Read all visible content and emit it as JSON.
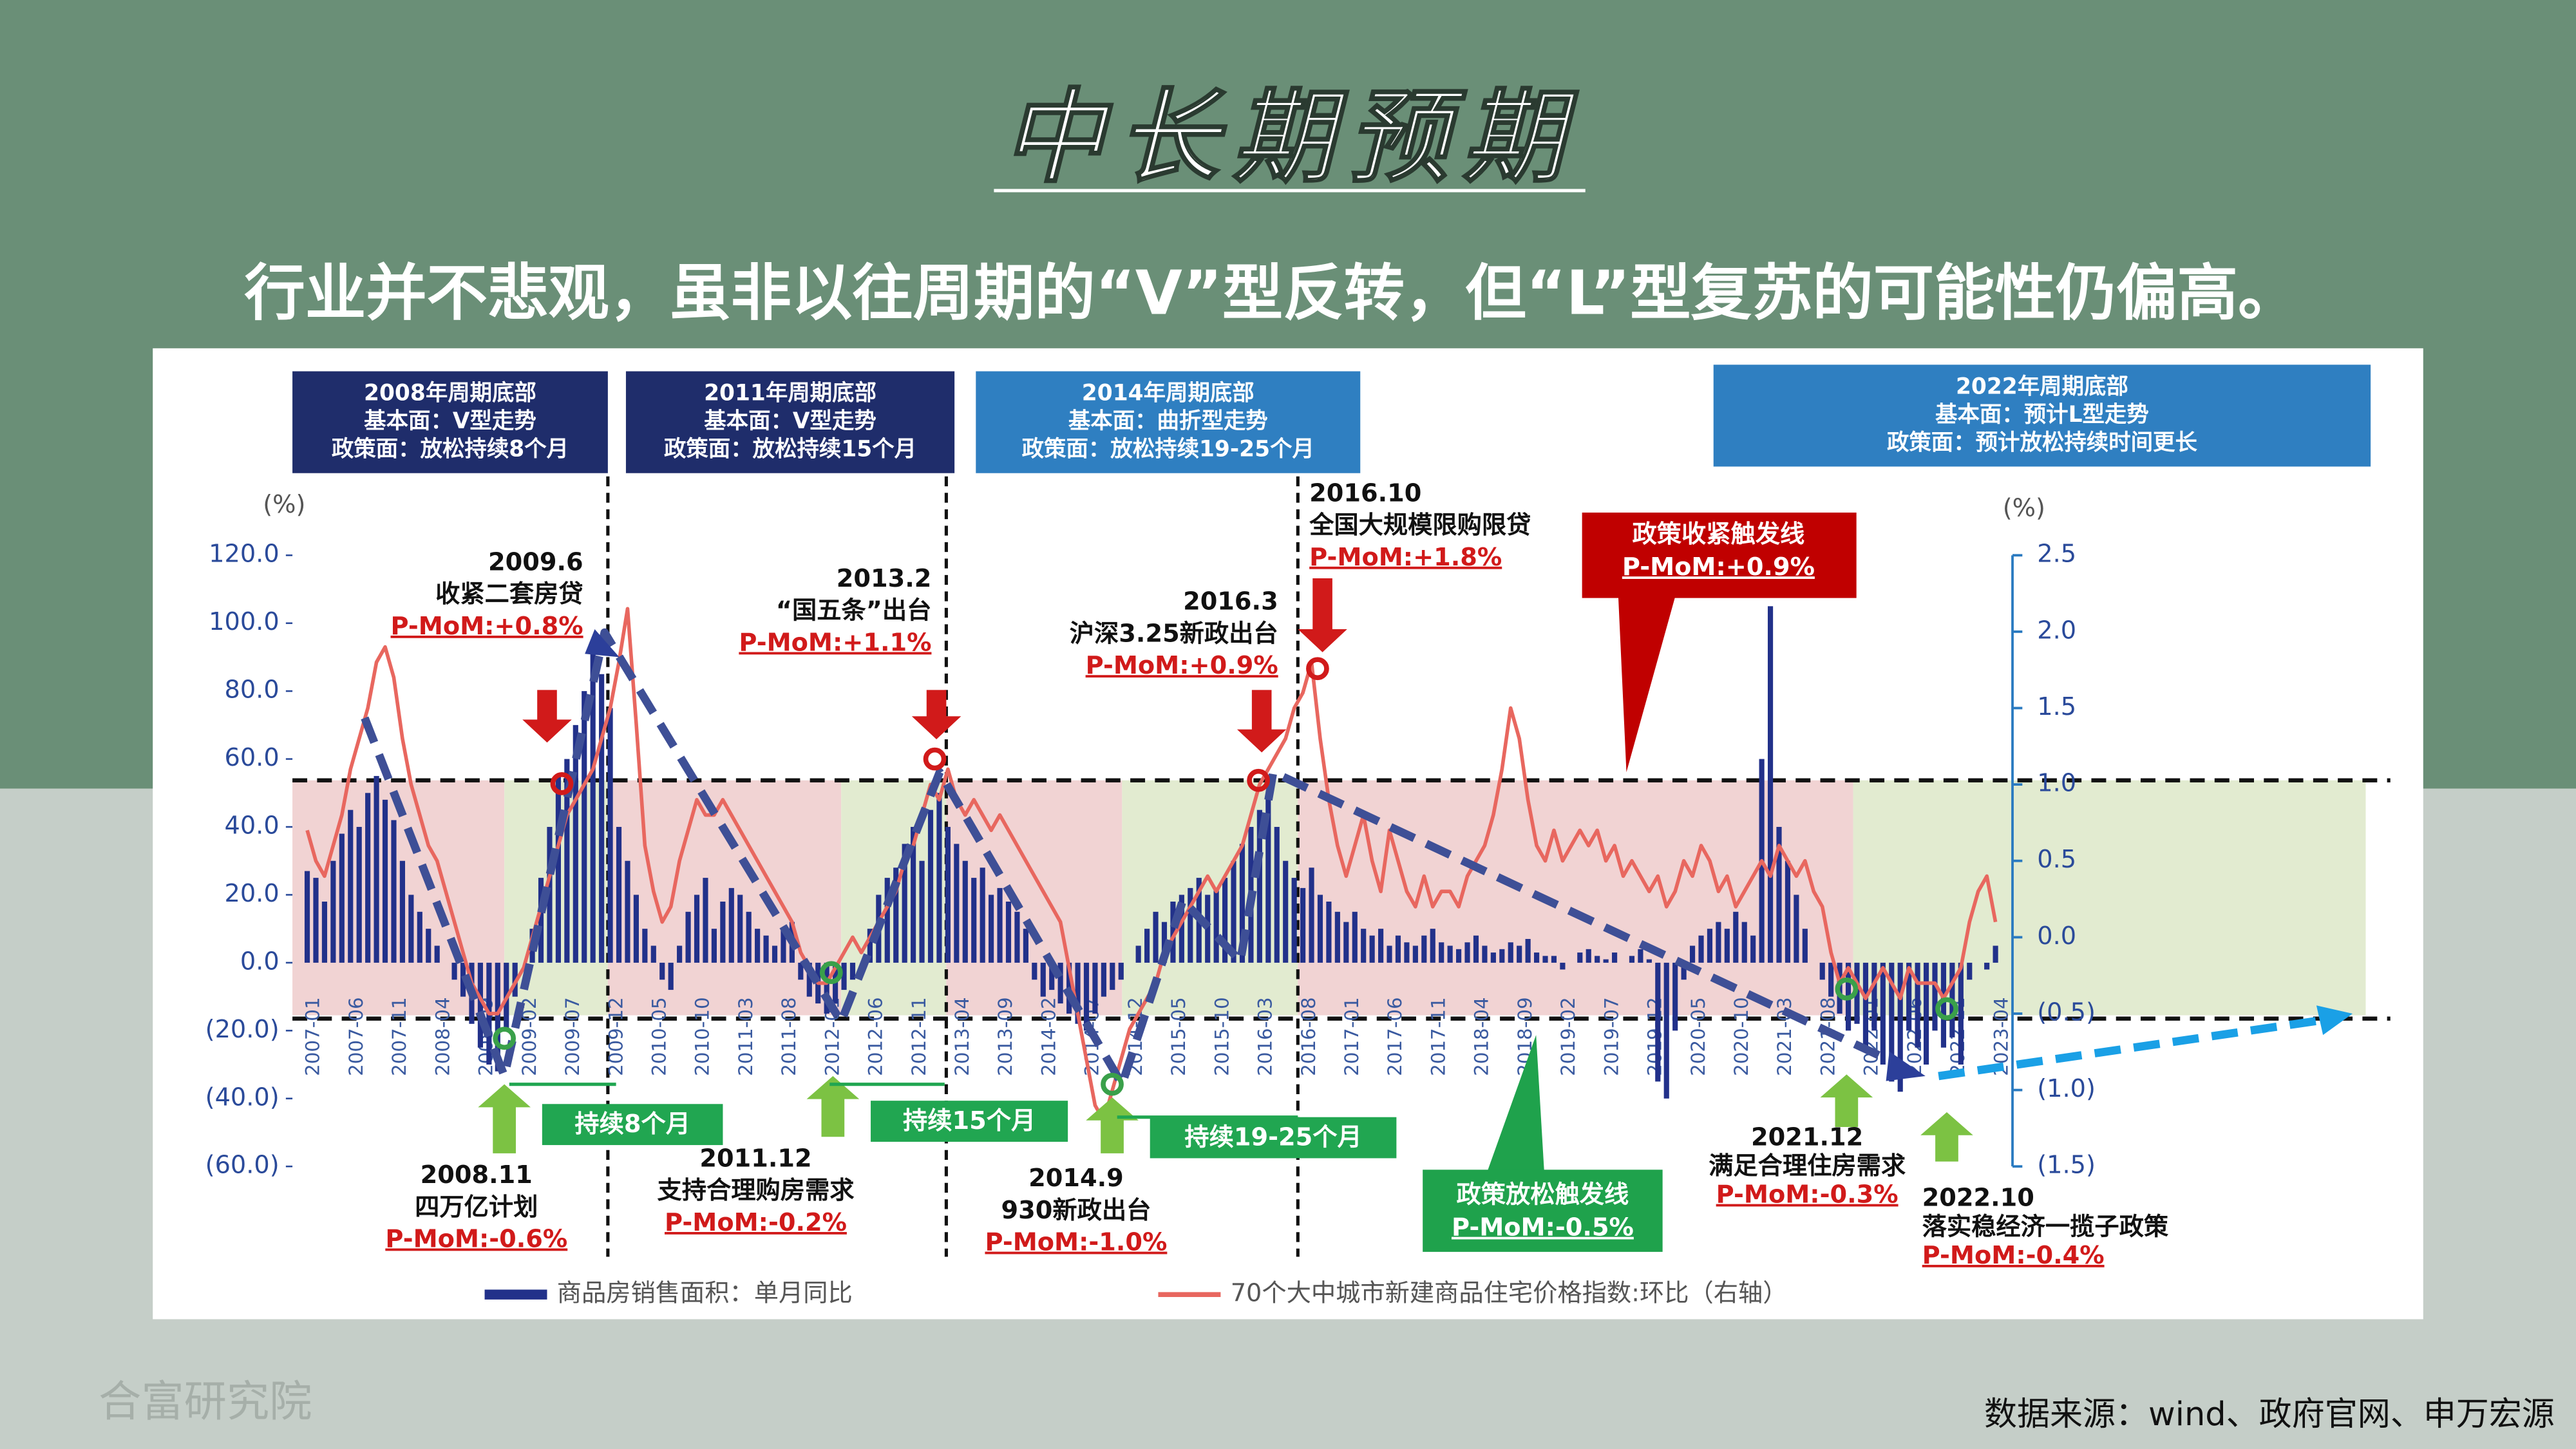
{
  "page": {
    "title": "中长期预期",
    "subtitle": "行业并不悲观，虽非以往周期的“V”型反转，但“L”型复苏的可能性仍偏高。",
    "source": "数据来源：wind、政府官网、申万宏源",
    "watermark": "合富研究院"
  },
  "chart_data": {
    "type": "bar",
    "y_unit": "(%)",
    "y2_unit": "(%)",
    "ylim": [
      -60,
      120
    ],
    "yticks": [
      {
        "value": 120,
        "label": "120.0"
      },
      {
        "value": 100,
        "label": "100.0"
      },
      {
        "value": 80,
        "label": "80.0"
      },
      {
        "value": 60,
        "label": "60.0"
      },
      {
        "value": 40,
        "label": "40.0"
      },
      {
        "value": 20,
        "label": "20.0"
      },
      {
        "value": 0,
        "label": "0.0"
      },
      {
        "value": -20,
        "label": "(20.0)"
      },
      {
        "value": -40,
        "label": "(40.0)"
      },
      {
        "value": -60,
        "label": "(60.0)"
      }
    ],
    "y2lim": [
      -1.5,
      2.5
    ],
    "y2ticks": [
      2.5,
      {
        "value": 2,
        "label": "2.0"
      },
      1.5,
      {
        "value": 1,
        "label": "1.0"
      },
      0.5,
      {
        "value": 0,
        "label": "0.0"
      },
      {
        "value": -0.5,
        "label": "(0.5)"
      },
      {
        "value": -1,
        "label": "(1.0)"
      },
      {
        "value": -1.5,
        "label": "(1.5)"
      }
    ],
    "categories": [
      "2007-01",
      null,
      null,
      null,
      null,
      "2007-06",
      null,
      null,
      null,
      null,
      "2007-11",
      null,
      null,
      null,
      null,
      "2008-04",
      null,
      null,
      null,
      null,
      "2008-09",
      null,
      null,
      null,
      null,
      "2009-02",
      null,
      null,
      null,
      null,
      "2009-07",
      null,
      null,
      null,
      null,
      "2009-12",
      null,
      null,
      null,
      null,
      "2010-05",
      null,
      null,
      null,
      null,
      "2010-10",
      null,
      null,
      null,
      null,
      "2011-03",
      null,
      null,
      null,
      null,
      "2011-08",
      null,
      null,
      null,
      null,
      "2012-01",
      null,
      null,
      null,
      null,
      "2012-06",
      null,
      null,
      null,
      null,
      "2012-11",
      null,
      null,
      null,
      null,
      "2013-04",
      null,
      null,
      null,
      null,
      "2013-09",
      null,
      null,
      null,
      null,
      "2014-02",
      null,
      null,
      null,
      null,
      "2014-07",
      null,
      null,
      null,
      null,
      "2014-12",
      null,
      null,
      null,
      null,
      "2015-05",
      null,
      null,
      null,
      null,
      "2015-10",
      null,
      null,
      null,
      null,
      "2016-03",
      null,
      null,
      null,
      null,
      "2016-08",
      null,
      null,
      null,
      null,
      "2017-01",
      null,
      null,
      null,
      null,
      "2017-06",
      null,
      null,
      null,
      null,
      "2017-11",
      null,
      null,
      null,
      null,
      "2018-04",
      null,
      null,
      null,
      null,
      "2018-09",
      null,
      null,
      null,
      null,
      "2019-02",
      null,
      null,
      null,
      null,
      "2019-07",
      null,
      null,
      null,
      null,
      "2019-12",
      null,
      null,
      null,
      null,
      "2020-05",
      null,
      null,
      null,
      null,
      "2020-10",
      null,
      null,
      null,
      null,
      "2021-03",
      null,
      null,
      null,
      null,
      "2021-08",
      null,
      null,
      null,
      null,
      "2022-01",
      null,
      null,
      null,
      null,
      "2022-06",
      null,
      null,
      null,
      null,
      "2022-11",
      null,
      null,
      null,
      null,
      "2023-04"
    ],
    "series": [
      {
        "name": "商品房销售面积：单月同比",
        "type": "bar",
        "color": "#22318a",
        "values": [
          27,
          25,
          18,
          30,
          38,
          45,
          40,
          50,
          55,
          48,
          42,
          30,
          20,
          15,
          10,
          5,
          0,
          -5,
          -10,
          -18,
          -25,
          -30,
          -32,
          -20,
          -10,
          0,
          10,
          25,
          40,
          55,
          60,
          70,
          80,
          95,
          85,
          75,
          40,
          30,
          20,
          10,
          5,
          -5,
          -8,
          5,
          15,
          20,
          25,
          10,
          18,
          22,
          20,
          15,
          10,
          8,
          5,
          10,
          12,
          -5,
          -10,
          -12,
          -15,
          -12,
          -8,
          -5,
          0,
          10,
          20,
          25,
          28,
          35,
          40,
          30,
          45,
          50,
          40,
          35,
          30,
          25,
          28,
          20,
          22,
          18,
          15,
          10,
          -5,
          -10,
          -8,
          -12,
          -15,
          -18,
          -20,
          -15,
          -10,
          -8,
          -5,
          0,
          5,
          10,
          15,
          12,
          18,
          20,
          22,
          25,
          20,
          22,
          25,
          30,
          35,
          40,
          45,
          50,
          40,
          30,
          25,
          22,
          28,
          20,
          18,
          15,
          12,
          15,
          10,
          8,
          10,
          5,
          8,
          6,
          5,
          8,
          10,
          6,
          5,
          4,
          6,
          8,
          5,
          3,
          4,
          6,
          5,
          7,
          3,
          2,
          2,
          -2,
          0,
          3,
          4,
          2,
          1,
          3,
          0,
          2,
          4,
          1,
          -35,
          -40,
          -20,
          -5,
          5,
          8,
          10,
          12,
          10,
          15,
          12,
          8,
          60,
          105,
          40,
          30,
          20,
          10,
          0,
          -5,
          -10,
          -15,
          -20,
          -18,
          -25,
          -20,
          -30,
          -35,
          -38,
          -20,
          -25,
          -30,
          -20,
          -25,
          -22,
          -30,
          -5,
          0,
          -2,
          5
        ]
      },
      {
        "name": "70个大中城市新建商品住宅价格指数:环比（右轴）",
        "type": "line",
        "axis": "y2",
        "color": "#e8675f",
        "values": [
          0.7,
          0.5,
          0.4,
          0.6,
          0.8,
          1.1,
          1.3,
          1.5,
          1.8,
          1.9,
          1.7,
          1.3,
          1.0,
          0.8,
          0.6,
          0.5,
          0.3,
          0.1,
          -0.1,
          -0.3,
          -0.4,
          -0.5,
          -0.5,
          -0.4,
          -0.3,
          -0.2,
          0.0,
          0.2,
          0.4,
          0.6,
          0.8,
          0.9,
          1.0,
          1.1,
          1.3,
          1.5,
          1.8,
          2.15,
          1.4,
          0.6,
          0.3,
          0.1,
          0.2,
          0.5,
          0.7,
          0.9,
          0.8,
          0.8,
          0.9,
          0.8,
          0.7,
          0.6,
          0.5,
          0.4,
          0.3,
          0.2,
          0.1,
          -0.1,
          -0.2,
          -0.3,
          -0.3,
          -0.2,
          -0.1,
          0.0,
          -0.1,
          0.0,
          0.1,
          0.2,
          0.3,
          0.5,
          0.6,
          0.8,
          1.0,
          0.9,
          1.1,
          0.9,
          0.8,
          0.9,
          0.8,
          0.7,
          0.8,
          0.7,
          0.6,
          0.5,
          0.4,
          0.3,
          0.2,
          0.1,
          -0.2,
          -0.5,
          -0.8,
          -1.1,
          -1.2,
          -1.0,
          -0.8,
          -0.6,
          -0.5,
          -0.4,
          -0.3,
          -0.1,
          0.0,
          0.1,
          0.2,
          0.3,
          0.4,
          0.3,
          0.4,
          0.5,
          0.6,
          0.8,
          1.0,
          1.1,
          1.2,
          1.3,
          1.5,
          1.6,
          1.8,
          1.3,
          0.9,
          0.6,
          0.4,
          0.6,
          0.8,
          0.5,
          0.3,
          0.7,
          0.5,
          0.3,
          0.2,
          0.4,
          0.2,
          0.3,
          0.3,
          0.2,
          0.4,
          0.5,
          0.6,
          0.8,
          1.1,
          1.5,
          1.3,
          0.9,
          0.6,
          0.5,
          0.7,
          0.5,
          0.6,
          0.7,
          0.6,
          0.7,
          0.5,
          0.6,
          0.4,
          0.5,
          0.4,
          0.3,
          0.4,
          0.2,
          0.3,
          0.5,
          0.4,
          0.6,
          0.5,
          0.3,
          0.4,
          0.2,
          0.3,
          0.4,
          0.5,
          0.4,
          0.6,
          0.5,
          0.4,
          0.5,
          0.3,
          0.2,
          -0.1,
          -0.3,
          -0.2,
          -0.3,
          -0.4,
          -0.3,
          -0.2,
          -0.3,
          -0.4,
          -0.2,
          -0.3,
          -0.3,
          -0.3,
          -0.4,
          -0.3,
          -0.2,
          0.1,
          0.3,
          0.4,
          0.1
        ]
      }
    ],
    "period_boxes": [
      [
        "2008年周期底部",
        "基本面：V型走势",
        "政策面：放松持续8个月"
      ],
      [
        "2011年周期底部",
        "基本面：V型走势",
        "政策面：放松持续15个月"
      ],
      [
        "2014年周期底部",
        "基本面：曲折型走势",
        "政策面：放松持续19-25个月"
      ],
      [
        "2022年周期底部",
        "基本面：预计L型走势",
        "政策面：预计放松持续时间更长"
      ]
    ],
    "events": [
      {
        "date": "2009.6",
        "text": "收紧二套房贷",
        "pmom": "P-MoM:+0.8%"
      },
      {
        "date": "2013.2",
        "text": "“国五条”出台",
        "pmom": "P-MoM:+1.1%"
      },
      {
        "date": "2016.3",
        "text": "沪深3.25新政出台",
        "pmom": "P-MoM:+0.9%"
      },
      {
        "date": "2016.10",
        "text": "全国大规模限购限贷",
        "pmom": "P-MoM:+1.8%"
      },
      {
        "date": "2008.11",
        "text": "四万亿计划",
        "pmom": "P-MoM:-0.6%"
      },
      {
        "date": "2011.12",
        "text": "支持合理购房需求",
        "pmom": "P-MoM:-0.2%"
      },
      {
        "date": "2014.9",
        "text": "930新政出台",
        "pmom": "P-MoM:-1.0%"
      },
      {
        "date": "2021.12",
        "text": "满足合理住房需求",
        "pmom": "P-MoM:-0.3%"
      },
      {
        "date": "2022.10",
        "text": "落实稳经济一揽子政策",
        "pmom": "P-MoM:-0.4%"
      }
    ],
    "durations": [
      "持续8个月",
      "持续15个月",
      "持续19-25个月"
    ],
    "triggers": [
      {
        "label": "政策收紧触发线",
        "pmom": "P-MoM:+0.9%"
      },
      {
        "label": "政策放松触发线",
        "pmom": "P-MoM:-0.5%"
      }
    ]
  }
}
